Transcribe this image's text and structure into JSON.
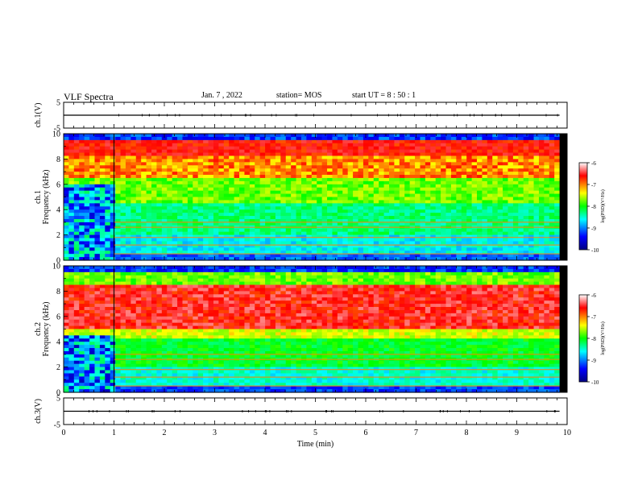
{
  "header": {
    "title": "VLF Spectra",
    "date": "Jan. 7 , 2022",
    "station": "station= MOS",
    "start": "start  UT =   8 : 50 : 1"
  },
  "chart_data": [
    {
      "type": "line",
      "name": "ch1-voltage",
      "ylabel": "ch.1(V)",
      "ylim": [
        -5,
        5
      ],
      "yticks": [
        "5",
        "-5"
      ],
      "xlim": [
        0,
        10
      ],
      "series": [
        {
          "x": [
            0,
            9.85
          ],
          "y": [
            0,
            0
          ]
        }
      ]
    },
    {
      "type": "heatmap",
      "name": "ch1-spectrogram",
      "ylabel": "ch.1\nFrequency (kHz)",
      "ylim": [
        0,
        10
      ],
      "yticks": [
        "0",
        "2",
        "4",
        "6",
        "8",
        "10"
      ],
      "xlim": [
        0,
        10
      ],
      "data_extent_x": [
        0,
        9.85
      ],
      "intensity_profile": "ch1",
      "colorbar": {
        "label": "log(PSD)(V²/Hz)",
        "ticks": [
          "-6",
          "-7",
          "-8",
          "-9",
          "-10"
        ],
        "range": [
          -10,
          -6
        ]
      }
    },
    {
      "type": "heatmap",
      "name": "ch2-spectrogram",
      "ylabel": "ch.2\nFrequency (kHz)",
      "ylim": [
        0,
        10
      ],
      "yticks": [
        "0",
        "2",
        "4",
        "6",
        "8",
        "10"
      ],
      "xlim": [
        0,
        10
      ],
      "data_extent_x": [
        0,
        9.85
      ],
      "intensity_profile": "ch2",
      "colorbar": {
        "label": "log(PSD)(V²/Hz)",
        "ticks": [
          "-6",
          "-7",
          "-8",
          "-9",
          "-10"
        ],
        "range": [
          -10,
          -6
        ]
      }
    },
    {
      "type": "line",
      "name": "ch3-voltage",
      "ylabel": "ch.3(V)",
      "ylim": [
        -5,
        5
      ],
      "yticks": [
        "5",
        "-5"
      ],
      "xlim": [
        0,
        10
      ],
      "series": [
        {
          "x": [
            0,
            9.85
          ],
          "y": [
            0,
            0
          ]
        }
      ]
    }
  ],
  "x_axis": {
    "label": "Time  (min)",
    "ticks": [
      "0",
      "1",
      "2",
      "3",
      "4",
      "5",
      "6",
      "7",
      "8",
      "9",
      "10"
    ]
  },
  "colors": {
    "colormap": [
      "#000080",
      "#0000ff",
      "#00ffff",
      "#00ff00",
      "#ffff00",
      "#ff0000",
      "#ffffff"
    ],
    "frame": "#000000",
    "gap": "#000000"
  }
}
